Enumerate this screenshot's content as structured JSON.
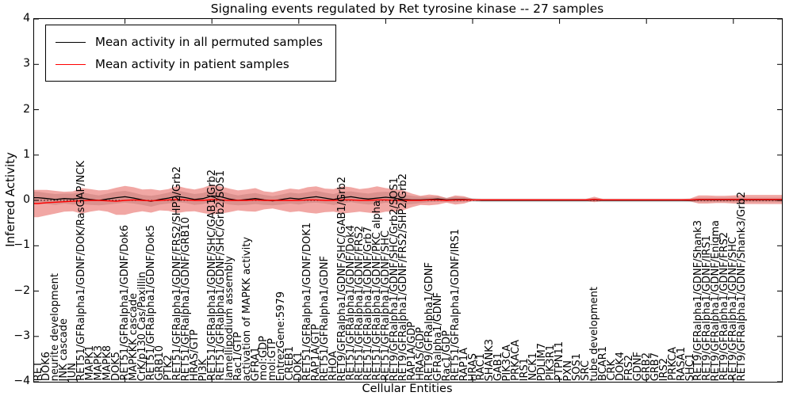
{
  "chart_data": {
    "type": "line",
    "title": "Signaling events regulated by Ret tyrosine kinase -- 27 samples",
    "xlabel": "Cellular Entities",
    "ylabel": "Inferred Activity",
    "ylim": [
      -4,
      4
    ],
    "ytick_values": [
      4,
      3,
      2,
      1,
      0,
      -1,
      -2,
      -3,
      -4
    ],
    "ytick_labels": [
      "4",
      "3",
      "2",
      "1",
      "0",
      "−1",
      "−2",
      "−3",
      "−4"
    ],
    "xtick_every": 10,
    "grid": false,
    "legend": {
      "position": "upper left",
      "entries": [
        {
          "label": "Mean activity in all permuted samples",
          "color": "#000000"
        },
        {
          "label": "Mean activity in patient samples",
          "color": "#ff0000"
        }
      ]
    },
    "zero_line": {
      "y": 0,
      "style": "dotted",
      "color": "#000000"
    },
    "band_colors": {
      "permuted": "rgba(130,130,130,0.30)",
      "patient": "rgba(222,45,38,0.42)"
    },
    "categories": [
      "RET",
      "DOK6",
      "neurite development",
      "JNK cascade",
      "JUN",
      "RET51/GFRalpha1/GDNF/DOK/RasGAP/NCK",
      "MAPK1",
      "MAPK3",
      "MAPK8",
      "DOK5",
      "RET51/GFRalpha1/GDNF/Dok6",
      "MAPKKK cascade",
      "CrK/p130 Cas/Paxillin",
      "RET51/GFRalpha1/GDNF/Dok5",
      "GRB10",
      "PTK2",
      "RET51/GFRalpha1/GDNF/FRS2/SHP2/Grb2",
      "RET51/GFRalpha1/GDNF/GRB10",
      "HRAS/GTP",
      "PI3K",
      "RET51/GFRalpha1/GDNF/SHC/GAB1/Grb2",
      "RET51/GFRalpha1/GDNF/SHC/Grb2/SOS1",
      "lamellipodium assembly",
      "Rac1/GTP",
      "activation of MAPKK activity",
      "GFRA1",
      "mol:GDP",
      "mol:GTP",
      "EntrezGene:5979",
      "CREB1",
      "DOK1",
      "RET51/GFRalpha1/GDNF/DOK1",
      "RAP1A/GTP",
      "RET51/GFRalpha1/GDNF",
      "RHOA",
      "RET9/GFRalpha1/GDNF/SHC/GAB1/Grb2",
      "RET51/GFRalpha1/GDNF/Dok4",
      "RET51/GFRalpha1/GDNF/FRS2",
      "RET51/GFRalpha1/GDNF/Grb7",
      "RET51/GFRalpha1/GDNF/PKC alpha",
      "RET51/GFRalpha1/GDNF/SHC",
      "RET9/GFRalpha1/GDNF/SHC/Grb2/SOS1",
      "RET9/GFRalpha1/GDNF/FRS2/SHP2/Grb2",
      "RAP1A/GDP",
      "HRAS/GDP",
      "RET9/GFRalpha1/GDNF",
      "GFRalpha1/GDNF",
      "Rac1/GDP",
      "RET51/GFRalpha1/GDNF/IRS1",
      "RAP1A",
      "HRAS",
      "RAC1",
      "SHANK3",
      "GAB1",
      "PIK3CA",
      "PRKACA",
      "IRS1",
      "NCK1",
      "PDLIM7",
      "PIK3R1",
      "PTPN11",
      "PXN",
      "SOS1",
      "SRC",
      "tube development",
      "BCAR1",
      "CRK",
      "DOK4",
      "FRS2",
      "GDNF",
      "GRB2",
      "GRB7",
      "IRS2",
      "PRKCA",
      "RASA1",
      "SHC1",
      "RET9/GFRalpha1/GDNF/Shank3",
      "RET9/GFRalpha1/GDNF/IRS1",
      "RET9/GFRalpha1/GDNF/Enigma",
      "RET9/GFRalpha1/GDNF/FRS2",
      "RET9/GFRalpha1/GDNF/SHC",
      "RET9/GFRalpha1/GDNF/Shank3/Grb2"
    ],
    "series": [
      {
        "name": "Mean activity in all permuted samples",
        "color": "#000000",
        "values": [
          0.06,
          0.04,
          0.02,
          0.04,
          0.03,
          0.05,
          0.02,
          0.0,
          0.03,
          0.06,
          0.08,
          0.05,
          0.01,
          -0.02,
          0.02,
          0.05,
          0.09,
          0.06,
          0.02,
          0.04,
          0.1,
          0.08,
          0.03,
          0.0,
          0.02,
          0.04,
          0.01,
          -0.01,
          0.02,
          0.05,
          0.03,
          0.06,
          0.08,
          0.05,
          0.02,
          0.06,
          0.08,
          0.05,
          0.03,
          0.05,
          0.07,
          0.05,
          0.02,
          0.01,
          0.01,
          0.02,
          0.03,
          0.01,
          0.02,
          0.02,
          0.01,
          0.0,
          0.0,
          0.0,
          0.0,
          0.0,
          0.0,
          0.0,
          0.0,
          0.0,
          0.0,
          0.0,
          0.0,
          0.0,
          0.01,
          0.0,
          0.0,
          0.0,
          0.0,
          0.0,
          0.0,
          0.0,
          0.0,
          0.0,
          0.0,
          0.0,
          0.01,
          0.01,
          0.01,
          0.01,
          0.01,
          0.01
        ]
      },
      {
        "name": "Mean activity in patient samples",
        "color": "#ff0000",
        "values": [
          -0.07,
          -0.05,
          -0.04,
          -0.03,
          -0.02,
          -0.01,
          0.0,
          0.0,
          -0.01,
          -0.02,
          0.0,
          0.01,
          0.0,
          -0.01,
          0.0,
          0.01,
          0.02,
          0.01,
          0.0,
          0.0,
          0.02,
          0.01,
          0.0,
          0.0,
          0.0,
          0.01,
          0.0,
          0.0,
          0.0,
          0.0,
          0.0,
          0.01,
          0.01,
          0.0,
          0.0,
          0.01,
          0.01,
          0.0,
          0.0,
          0.01,
          0.01,
          0.0,
          0.0,
          0.0,
          0.0,
          0.01,
          0.01,
          0.0,
          0.01,
          0.01,
          0.01,
          0.01,
          0.01,
          0.01,
          0.01,
          0.01,
          0.01,
          0.01,
          0.01,
          0.01,
          0.01,
          0.01,
          0.01,
          0.01,
          0.02,
          0.01,
          0.01,
          0.01,
          0.01,
          0.01,
          0.01,
          0.01,
          0.01,
          0.01,
          0.01,
          0.01,
          0.02,
          0.02,
          0.02,
          0.02,
          0.02,
          0.02
        ]
      },
      {
        "name": "Permuted samples std band half-width",
        "color": "rgba(130,130,130,0.30)",
        "values": [
          0.13,
          0.12,
          0.12,
          0.11,
          0.12,
          0.13,
          0.12,
          0.11,
          0.12,
          0.13,
          0.13,
          0.12,
          0.11,
          0.12,
          0.11,
          0.12,
          0.13,
          0.12,
          0.12,
          0.12,
          0.13,
          0.13,
          0.12,
          0.11,
          0.12,
          0.12,
          0.11,
          0.1,
          0.11,
          0.12,
          0.12,
          0.12,
          0.13,
          0.12,
          0.12,
          0.13,
          0.12,
          0.12,
          0.12,
          0.13,
          0.12,
          0.12,
          0.11,
          0.09,
          0.07,
          0.06,
          0.06,
          0.05,
          0.06,
          0.05,
          0.04,
          0.04,
          0.04,
          0.04,
          0.04,
          0.04,
          0.04,
          0.04,
          0.04,
          0.04,
          0.04,
          0.04,
          0.04,
          0.04,
          0.04,
          0.04,
          0.04,
          0.04,
          0.04,
          0.04,
          0.04,
          0.04,
          0.04,
          0.04,
          0.04,
          0.04,
          0.05,
          0.05,
          0.05,
          0.05,
          0.05,
          0.05
        ]
      },
      {
        "name": "Patient samples std band half-width",
        "color": "rgba(222,45,38,0.42)",
        "values": [
          0.3,
          0.28,
          0.25,
          0.22,
          0.22,
          0.28,
          0.25,
          0.22,
          0.24,
          0.3,
          0.32,
          0.28,
          0.24,
          0.26,
          0.22,
          0.24,
          0.3,
          0.26,
          0.24,
          0.28,
          0.33,
          0.3,
          0.26,
          0.22,
          0.24,
          0.26,
          0.2,
          0.18,
          0.22,
          0.26,
          0.24,
          0.28,
          0.3,
          0.26,
          0.25,
          0.3,
          0.28,
          0.25,
          0.27,
          0.3,
          0.26,
          0.25,
          0.22,
          0.15,
          0.1,
          0.12,
          0.1,
          0.05,
          0.1,
          0.08,
          0.02,
          0.02,
          0.02,
          0.02,
          0.02,
          0.02,
          0.02,
          0.02,
          0.02,
          0.02,
          0.02,
          0.02,
          0.02,
          0.02,
          0.06,
          0.02,
          0.02,
          0.02,
          0.02,
          0.02,
          0.02,
          0.02,
          0.02,
          0.02,
          0.02,
          0.03,
          0.09,
          0.09,
          0.08,
          0.08,
          0.09,
          0.1
        ]
      }
    ]
  }
}
